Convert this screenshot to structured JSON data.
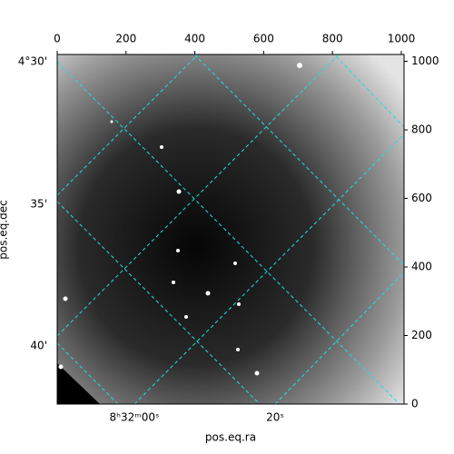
{
  "chart_data": {
    "type": "image",
    "xlabel": "pos.eq.ra",
    "ylabel": "pos.eq.dec",
    "xlim": [
      0,
      1008
    ],
    "ylim": [
      0,
      1020
    ],
    "xticks": [
      0,
      200,
      400,
      600,
      800,
      1000
    ],
    "yticks": [
      0,
      200,
      400,
      600,
      800,
      1000
    ],
    "ra_ticks": [
      "8ʰ32ᵐ00ˢ",
      "20ˢ"
    ],
    "dec_ticks": [
      "4°30'",
      "35'",
      "40'"
    ],
    "grid_color": "#22dddd"
  }
}
